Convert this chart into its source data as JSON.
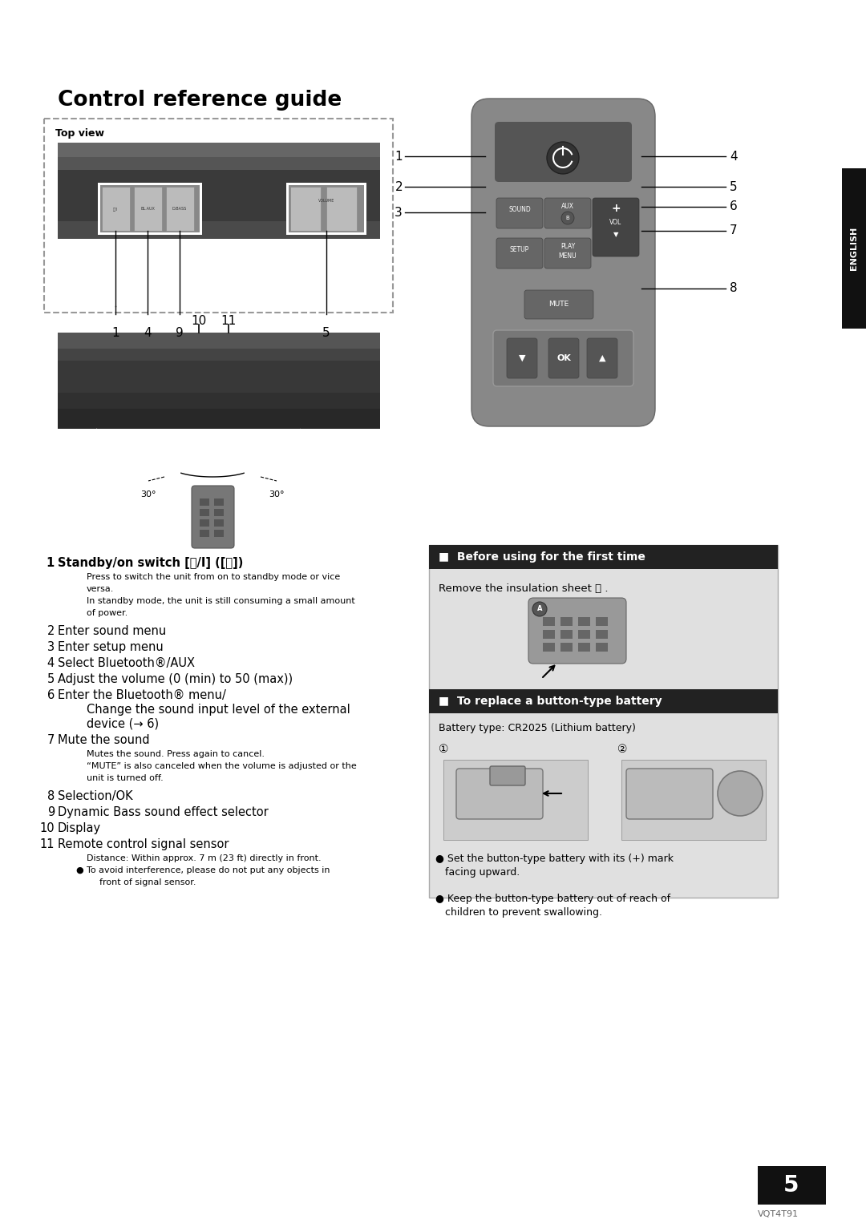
{
  "page_bg": "#ffffff",
  "title": "Control reference guide",
  "title_fontsize": 19,
  "title_fontweight": "bold",
  "page_num": "5",
  "footer_text": "VQT4T91"
}
